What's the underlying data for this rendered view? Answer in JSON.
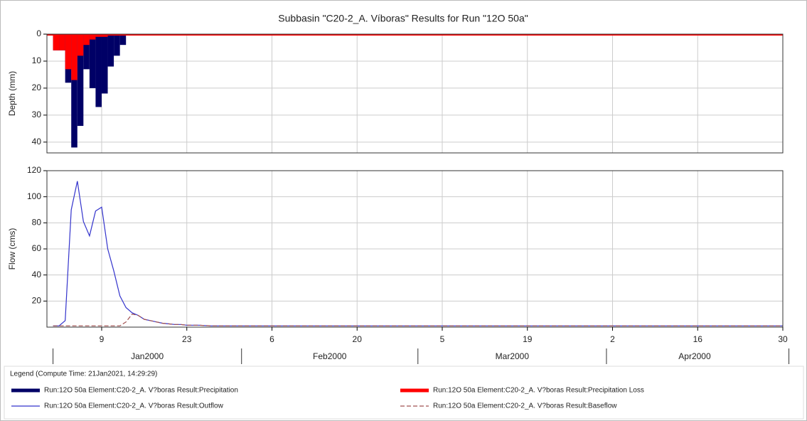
{
  "chart_data": [
    {
      "type": "bar",
      "title": "Subbasin \"C20-2_A. Víboras\" Results for Run \"12O 50a\"",
      "y_label": "Depth (mm)",
      "inverted": true,
      "x": [
        "2000-01-01",
        "2000-01-02",
        "2000-01-03",
        "2000-01-04",
        "2000-01-05",
        "2000-01-06",
        "2000-01-07",
        "2000-01-08",
        "2000-01-09",
        "2000-01-10",
        "2000-01-11",
        "2000-01-12"
      ],
      "series": [
        {
          "name": "Run:12O 50a Element:C20-2_A. V?boras Result:Precipitation",
          "color": "#000066",
          "values": [
            6,
            6,
            18,
            42,
            34,
            13,
            20,
            27,
            22,
            12,
            8,
            4
          ]
        },
        {
          "name": "Run:12O 50a Element:C20-2_A. V?boras Result:Precipitation Loss",
          "color": "#ff0000",
          "values": [
            6,
            6,
            13,
            17,
            8,
            4,
            2,
            1,
            1,
            0.5,
            0.5,
            0.5
          ]
        }
      ],
      "xlim": [
        "1999-12-31",
        "2000-04-30"
      ],
      "ylim": [
        0,
        44
      ],
      "yticks": [
        0,
        10,
        20,
        30,
        40
      ],
      "grid": true
    },
    {
      "type": "line",
      "y_label": "Flow (cms)",
      "x": [
        "2000-01-01",
        "2000-01-02",
        "2000-01-03",
        "2000-01-04",
        "2000-01-05",
        "2000-01-06",
        "2000-01-07",
        "2000-01-08",
        "2000-01-09",
        "2000-01-10",
        "2000-01-11",
        "2000-01-12",
        "2000-01-13",
        "2000-01-14",
        "2000-01-15",
        "2000-01-16",
        "2000-01-17",
        "2000-01-18",
        "2000-01-19",
        "2000-01-20",
        "2000-01-21",
        "2000-01-22",
        "2000-01-23",
        "2000-01-25",
        "2000-01-27",
        "2000-04-30"
      ],
      "series": [
        {
          "name": "Run:12O 50a Element:C20-2_A. V?boras Result:Outflow",
          "color": "#3333cc",
          "dash": false,
          "values": [
            1,
            1,
            5,
            90,
            112,
            81,
            70,
            89,
            92,
            60,
            43,
            24,
            15,
            11,
            9,
            6,
            5,
            4,
            3,
            2.5,
            2,
            2,
            1.5,
            1.5,
            1,
            1
          ]
        },
        {
          "name": "Run:12O 50a Element:C20-2_A. V?boras Result:Baseflow",
          "color": "#a05050",
          "dash": true,
          "values": [
            1,
            1,
            1,
            1,
            1,
            1,
            1,
            1,
            1,
            1,
            1,
            1,
            4,
            10,
            9,
            6,
            5,
            4,
            3,
            2.5,
            2,
            2,
            1.5,
            1.5,
            1,
            1
          ]
        }
      ],
      "xlim": [
        "1999-12-31",
        "2000-04-30"
      ],
      "ylim": [
        0,
        120
      ],
      "yticks": [
        20,
        40,
        60,
        80,
        100,
        120
      ],
      "grid": true,
      "xticks": [
        {
          "value": "2000-01-09",
          "label": "9"
        },
        {
          "value": "2000-01-23",
          "label": "23"
        },
        {
          "value": "2000-02-06",
          "label": "6"
        },
        {
          "value": "2000-02-20",
          "label": "20"
        },
        {
          "value": "2000-03-05",
          "label": "5"
        },
        {
          "value": "2000-03-19",
          "label": "19"
        },
        {
          "value": "2000-04-02",
          "label": "2"
        },
        {
          "value": "2000-04-16",
          "label": "16"
        },
        {
          "value": "2000-04-30",
          "label": "30"
        }
      ],
      "months": [
        {
          "value": "2000-01",
          "label": "Jan2000"
        },
        {
          "value": "2000-02",
          "label": "Feb2000"
        },
        {
          "value": "2000-03",
          "label": "Mar2000"
        },
        {
          "value": "2000-04",
          "label": "Apr2000"
        }
      ]
    }
  ],
  "legend_title": "Legend (Compute Time: 21Jan2021, 14:29:29)"
}
